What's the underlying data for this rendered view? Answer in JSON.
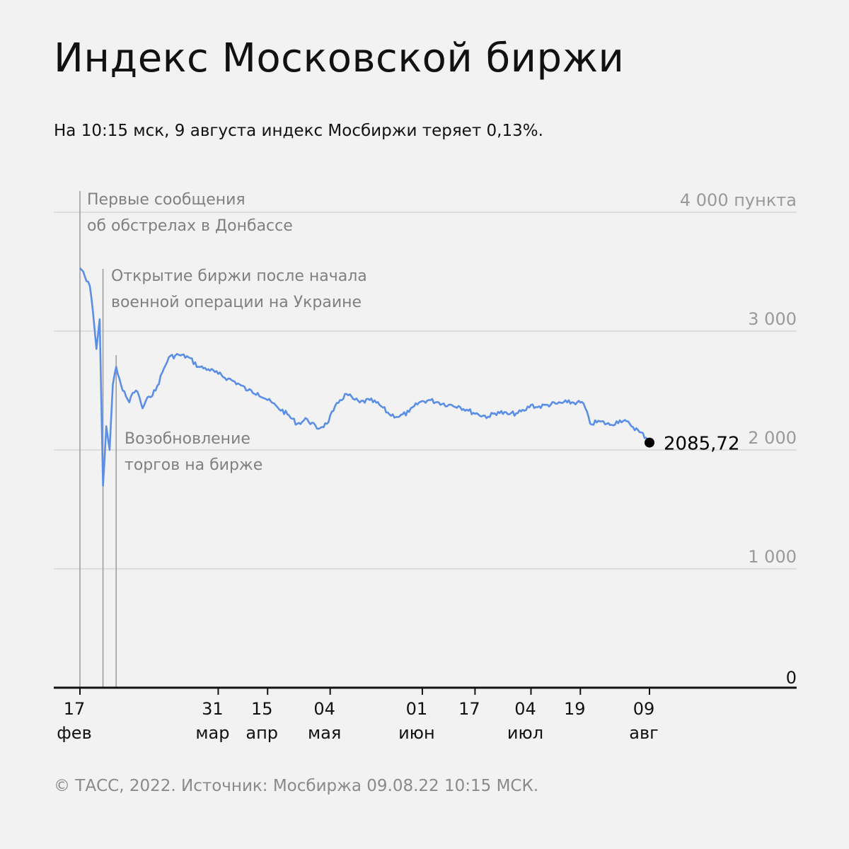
{
  "header": {
    "title": "Индекс Московской биржи",
    "subtitle": "На 10:15 мск, 9 августа индекс Мосбиржи теряет 0,13%."
  },
  "footer": {
    "source": "© ТАСС, 2022. Источник: Мосбиржа 09.08.22 10:15 МСК."
  },
  "colors": {
    "line": "#5b8fe6",
    "grid": "#d6d6d6",
    "axis": "#111111",
    "muted_text": "#9a9a9a"
  },
  "annotations": [
    {
      "line1": "Первые сообщения",
      "line2": "об обстрелах в Донбассе",
      "date": "2022-02-17"
    },
    {
      "line1": "Открытие биржи после начала",
      "line2": "военной операции на Украине",
      "date": "2022-02-24"
    },
    {
      "line1": "Возобновление",
      "line2": "торгов на бирже",
      "date": "2022-02-28"
    }
  ],
  "chart_data": {
    "type": "line",
    "ylim": [
      0,
      4000
    ],
    "y_ticks": [
      {
        "value": 0,
        "label": "0"
      },
      {
        "value": 1000,
        "label": "1 000"
      },
      {
        "value": 2000,
        "label": "2 000"
      },
      {
        "value": 3000,
        "label": "3 000"
      },
      {
        "value": 4000,
        "label": "4 000 пункта"
      }
    ],
    "x_ticks": [
      {
        "date": "2022-02-17",
        "day": "17",
        "month": "фев"
      },
      {
        "date": "2022-03-31",
        "day": "31",
        "month": "мар"
      },
      {
        "date": "2022-04-15",
        "day": "15",
        "month": "апр"
      },
      {
        "date": "2022-05-04",
        "day": "04",
        "month": "мая"
      },
      {
        "date": "2022-06-01",
        "day": "01",
        "month": "июн"
      },
      {
        "date": "2022-06-17",
        "day": "17",
        "month": ""
      },
      {
        "date": "2022-07-04",
        "day": "04",
        "month": "июл"
      },
      {
        "date": "2022-07-19",
        "day": "19",
        "month": ""
      },
      {
        "date": "2022-08-09",
        "day": "09",
        "month": "авг"
      }
    ],
    "last_value_label": "2085,72",
    "grid": true,
    "series": [
      {
        "points": [
          [
            "2022-02-17",
            3530
          ],
          [
            "2022-02-18",
            3500
          ],
          [
            "2022-02-19",
            3420
          ],
          [
            "2022-02-20",
            3380
          ],
          [
            "2022-02-21",
            3150
          ],
          [
            "2022-02-22",
            2850
          ],
          [
            "2022-02-23",
            3100
          ],
          [
            "2022-02-24",
            1700
          ],
          [
            "2022-02-25",
            2200
          ],
          [
            "2022-02-26",
            2000
          ],
          [
            "2022-02-27",
            2550
          ],
          [
            "2022-02-28",
            2700
          ],
          [
            "2022-03-01",
            2600
          ],
          [
            "2022-03-02",
            2500
          ],
          [
            "2022-03-03",
            2450
          ],
          [
            "2022-03-04",
            2400
          ],
          [
            "2022-03-05",
            2480
          ],
          [
            "2022-03-06",
            2500
          ],
          [
            "2022-03-07",
            2450
          ],
          [
            "2022-03-08",
            2350
          ],
          [
            "2022-03-10",
            2450
          ],
          [
            "2022-03-12",
            2500
          ],
          [
            "2022-03-14",
            2650
          ],
          [
            "2022-03-16",
            2780
          ],
          [
            "2022-03-19",
            2800
          ],
          [
            "2022-03-22",
            2780
          ],
          [
            "2022-03-25",
            2700
          ],
          [
            "2022-03-28",
            2680
          ],
          [
            "2022-03-31",
            2640
          ],
          [
            "2022-04-03",
            2600
          ],
          [
            "2022-04-06",
            2560
          ],
          [
            "2022-04-09",
            2500
          ],
          [
            "2022-04-12",
            2480
          ],
          [
            "2022-04-15",
            2420
          ],
          [
            "2022-04-18",
            2360
          ],
          [
            "2022-04-21",
            2300
          ],
          [
            "2022-04-24",
            2220
          ],
          [
            "2022-04-27",
            2260
          ],
          [
            "2022-04-30",
            2180
          ],
          [
            "2022-05-03",
            2220
          ],
          [
            "2022-05-05",
            2330
          ],
          [
            "2022-05-07",
            2420
          ],
          [
            "2022-05-09",
            2470
          ],
          [
            "2022-05-11",
            2430
          ],
          [
            "2022-05-13",
            2400
          ],
          [
            "2022-05-16",
            2420
          ],
          [
            "2022-05-19",
            2380
          ],
          [
            "2022-05-22",
            2300
          ],
          [
            "2022-05-25",
            2280
          ],
          [
            "2022-05-28",
            2320
          ],
          [
            "2022-05-31",
            2400
          ],
          [
            "2022-06-03",
            2420
          ],
          [
            "2022-06-06",
            2400
          ],
          [
            "2022-06-09",
            2380
          ],
          [
            "2022-06-12",
            2370
          ],
          [
            "2022-06-15",
            2330
          ],
          [
            "2022-06-18",
            2300
          ],
          [
            "2022-06-21",
            2280
          ],
          [
            "2022-06-24",
            2320
          ],
          [
            "2022-06-27",
            2300
          ],
          [
            "2022-06-30",
            2310
          ],
          [
            "2022-07-02",
            2330
          ],
          [
            "2022-07-04",
            2380
          ],
          [
            "2022-07-06",
            2360
          ],
          [
            "2022-07-09",
            2380
          ],
          [
            "2022-07-12",
            2390
          ],
          [
            "2022-07-15",
            2400
          ],
          [
            "2022-07-18",
            2400
          ],
          [
            "2022-07-20",
            2390
          ],
          [
            "2022-07-22",
            2220
          ],
          [
            "2022-07-25",
            2240
          ],
          [
            "2022-07-28",
            2210
          ],
          [
            "2022-07-31",
            2250
          ],
          [
            "2022-08-03",
            2220
          ],
          [
            "2022-08-06",
            2150
          ],
          [
            "2022-08-09",
            2085.72
          ]
        ]
      }
    ]
  }
}
